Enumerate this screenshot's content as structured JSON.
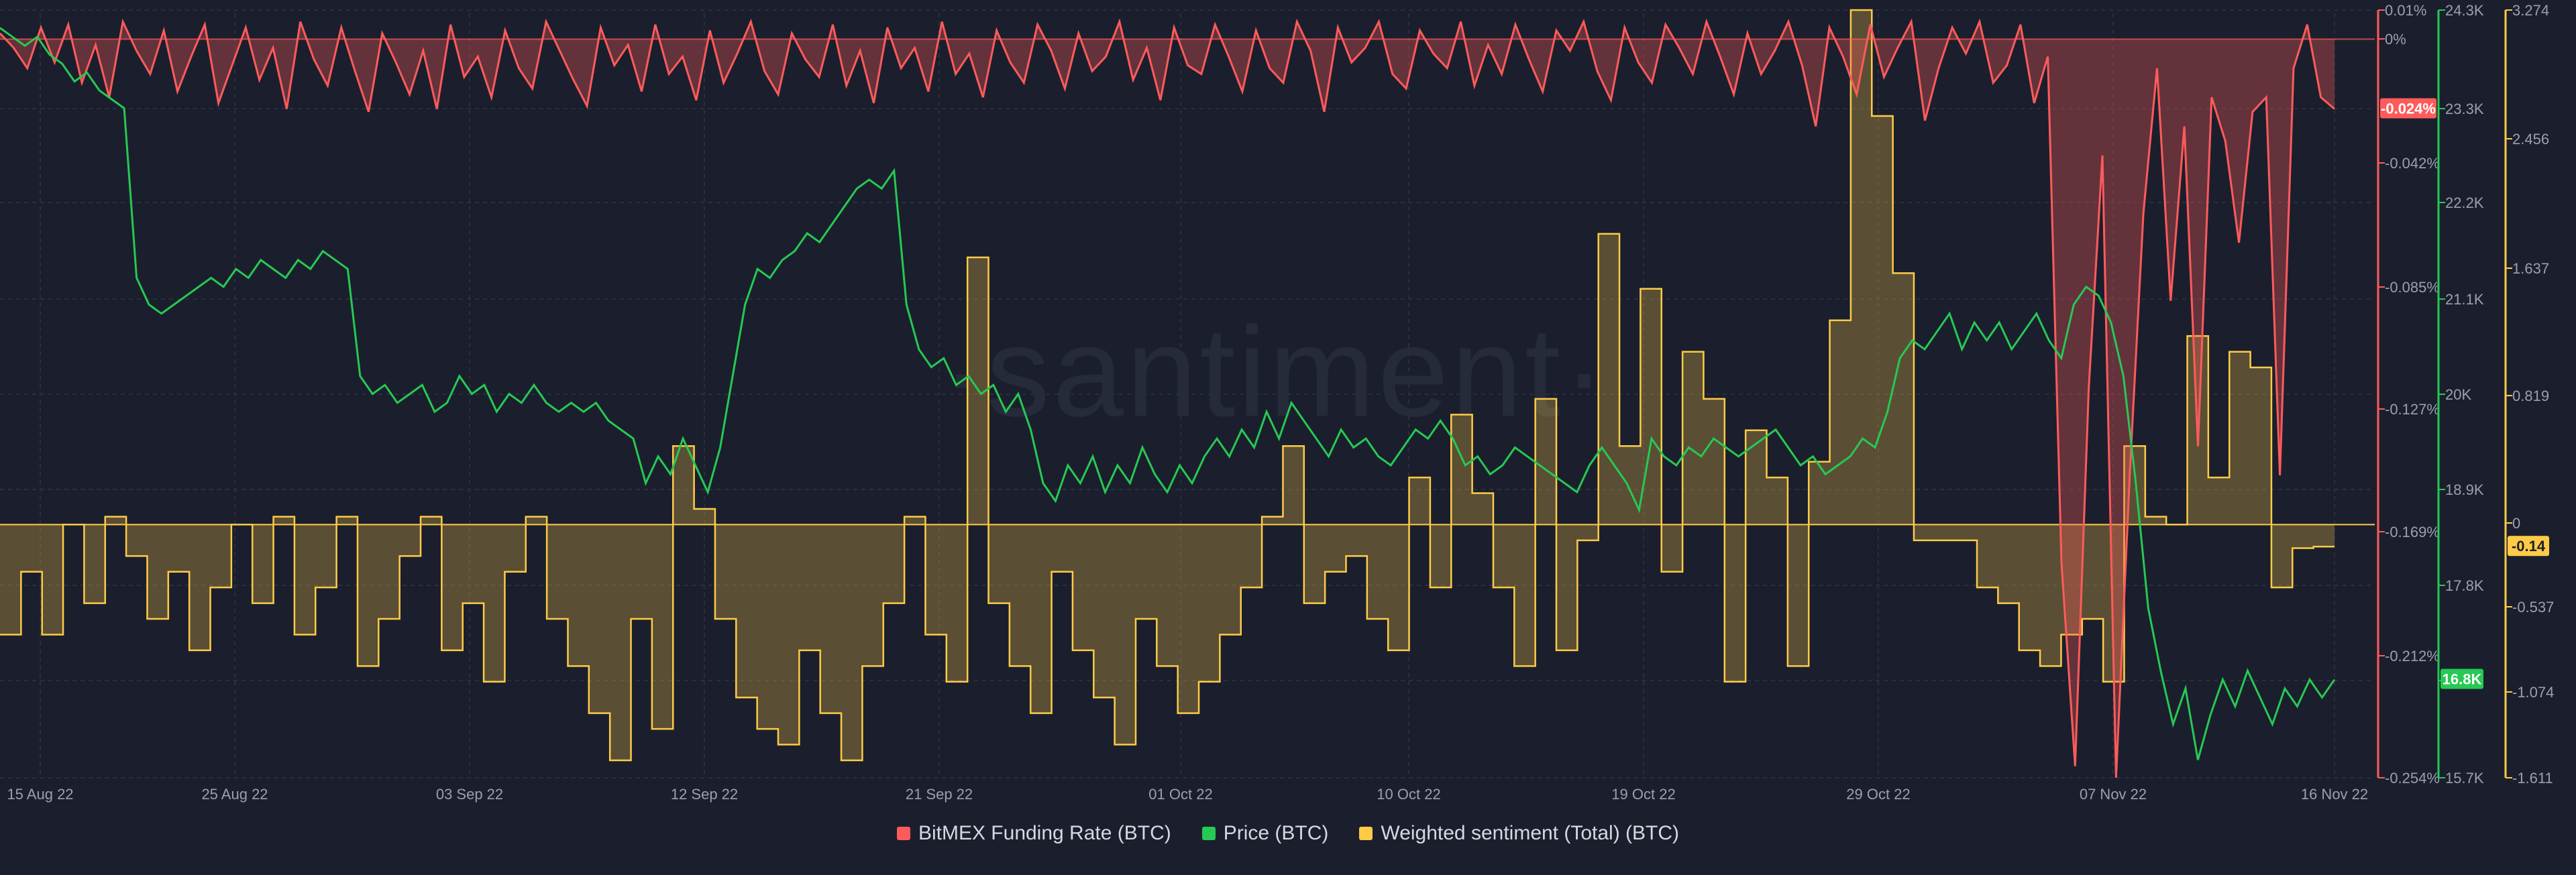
{
  "watermark": "·santiment·",
  "colors": {
    "background": "#1b1f2d",
    "grid": "#2a2f3f",
    "funding": "#ff5b5b",
    "price": "#26c953",
    "sentiment": "#ffcb47"
  },
  "chart_data": {
    "type": "line",
    "title": "",
    "x_tick_labels": [
      "15 Aug 22",
      "25 Aug 22",
      "03 Sep 22",
      "12 Sep 22",
      "21 Sep 22",
      "01 Oct 22",
      "10 Oct 22",
      "19 Oct 22",
      "29 Oct 22",
      "07 Nov 22",
      "16 Nov 22"
    ],
    "x_range": [
      "2022-08-15",
      "2022-11-16"
    ],
    "grid": true,
    "legend_position": "bottom-center",
    "series": [
      {
        "name": "BitMEX Funding Rate (BTC)",
        "key": "funding",
        "style": "area-line",
        "axis_ticks": [
          "0.01%",
          "0%",
          "-0.042%",
          "-0.085%",
          "-0.127%",
          "-0.169%",
          "-0.212%",
          "-0.254%"
        ],
        "ylim": [
          -0.254,
          0.01
        ],
        "last_value_label": "-0.024%",
        "values": [
          0.002,
          -0.003,
          -0.01,
          0.004,
          -0.008,
          0.005,
          -0.015,
          -0.002,
          -0.02,
          0.006,
          -0.004,
          -0.012,
          0.003,
          -0.018,
          -0.006,
          0.005,
          -0.022,
          -0.009,
          0.004,
          -0.014,
          -0.003,
          -0.024,
          0.006,
          -0.007,
          -0.016,
          0.004,
          -0.011,
          -0.025,
          0.002,
          -0.008,
          -0.019,
          -0.004,
          -0.024,
          0.005,
          -0.013,
          -0.006,
          -0.02,
          0.003,
          -0.01,
          -0.017,
          0.006,
          -0.004,
          -0.014,
          -0.023,
          0.004,
          -0.009,
          -0.002,
          -0.018,
          0.005,
          -0.012,
          -0.006,
          -0.021,
          0.003,
          -0.015,
          -0.005,
          0.006,
          -0.011,
          -0.019,
          0.002,
          -0.007,
          -0.013,
          0.005,
          -0.016,
          -0.004,
          -0.022,
          0.004,
          -0.01,
          -0.003,
          -0.018,
          0.006,
          -0.012,
          -0.005,
          -0.02,
          0.003,
          -0.008,
          -0.015,
          0.005,
          -0.004,
          -0.017,
          0.002,
          -0.011,
          -0.006,
          0.006,
          -0.014,
          -0.003,
          -0.021,
          0.004,
          -0.009,
          -0.012,
          0.005,
          -0.006,
          -0.018,
          0.003,
          -0.01,
          -0.015,
          0.006,
          -0.004,
          -0.025,
          0.004,
          -0.008,
          -0.003,
          0.006,
          -0.012,
          -0.017,
          0.003,
          -0.005,
          -0.01,
          0.006,
          -0.016,
          -0.002,
          -0.012,
          0.005,
          -0.007,
          -0.018,
          0.003,
          -0.004,
          0.006,
          -0.011,
          -0.021,
          0.004,
          -0.008,
          -0.015,
          0.005,
          -0.003,
          -0.012,
          0.006,
          -0.006,
          -0.019,
          0.002,
          -0.012,
          -0.004,
          0.006,
          -0.009,
          -0.03,
          0.004,
          -0.006,
          -0.019,
          0.005,
          -0.013,
          -0.003,
          0.006,
          -0.028,
          -0.01,
          0.004,
          -0.005,
          0.006,
          -0.015,
          -0.009,
          0.005,
          -0.022,
          -0.006,
          -0.18,
          -0.25,
          -0.12,
          -0.04,
          -0.254,
          -0.15,
          -0.06,
          -0.01,
          -0.09,
          -0.03,
          -0.14,
          -0.02,
          -0.035,
          -0.07,
          -0.025,
          -0.02,
          -0.15,
          -0.01,
          0.005,
          -0.02,
          -0.024
        ]
      },
      {
        "name": "Price (BTC)",
        "key": "price",
        "style": "line",
        "axis_ticks": [
          "24.3K",
          "23.3K",
          "22.2K",
          "21.1K",
          "20K",
          "18.9K",
          "17.8K",
          "16.8K",
          "15.7K"
        ],
        "ylim": [
          15.7,
          24.3
        ],
        "unit": "K USD",
        "last_value_label": "16.8K",
        "values": [
          24.1,
          24.0,
          23.9,
          24.0,
          23.8,
          23.7,
          23.5,
          23.6,
          23.4,
          23.3,
          23.2,
          21.3,
          21.0,
          20.9,
          21.0,
          21.1,
          21.2,
          21.3,
          21.2,
          21.4,
          21.3,
          21.5,
          21.4,
          21.3,
          21.5,
          21.4,
          21.6,
          21.5,
          21.4,
          20.2,
          20.0,
          20.1,
          19.9,
          20.0,
          20.1,
          19.8,
          19.9,
          20.2,
          20.0,
          20.1,
          19.8,
          20.0,
          19.9,
          20.1,
          19.9,
          19.8,
          19.9,
          19.8,
          19.9,
          19.7,
          19.6,
          19.5,
          19.0,
          19.3,
          19.1,
          19.5,
          19.2,
          18.9,
          19.4,
          20.2,
          21.0,
          21.4,
          21.3,
          21.5,
          21.6,
          21.8,
          21.7,
          21.9,
          22.1,
          22.3,
          22.4,
          22.3,
          22.5,
          21.0,
          20.5,
          20.3,
          20.4,
          20.1,
          20.2,
          20.0,
          20.1,
          19.8,
          20.0,
          19.6,
          19.0,
          18.8,
          19.2,
          19.0,
          19.3,
          18.9,
          19.2,
          19.0,
          19.4,
          19.1,
          18.9,
          19.2,
          19.0,
          19.3,
          19.5,
          19.3,
          19.6,
          19.4,
          19.8,
          19.5,
          19.9,
          19.7,
          19.5,
          19.3,
          19.6,
          19.4,
          19.5,
          19.3,
          19.2,
          19.4,
          19.6,
          19.5,
          19.7,
          19.5,
          19.2,
          19.3,
          19.1,
          19.2,
          19.4,
          19.3,
          19.2,
          19.1,
          19.0,
          18.9,
          19.2,
          19.4,
          19.2,
          19.0,
          18.7,
          19.5,
          19.3,
          19.2,
          19.4,
          19.3,
          19.5,
          19.4,
          19.3,
          19.4,
          19.5,
          19.6,
          19.4,
          19.2,
          19.3,
          19.1,
          19.2,
          19.3,
          19.5,
          19.4,
          19.8,
          20.4,
          20.6,
          20.5,
          20.7,
          20.9,
          20.5,
          20.8,
          20.6,
          20.8,
          20.5,
          20.7,
          20.9,
          20.6,
          20.4,
          21.0,
          21.2,
          21.1,
          20.8,
          20.2,
          19.0,
          17.6,
          16.9,
          16.3,
          16.7,
          15.9,
          16.4,
          16.8,
          16.5,
          16.9,
          16.6,
          16.3,
          16.7,
          16.5,
          16.8,
          16.6,
          16.8
        ]
      },
      {
        "name": "Weighted sentiment (Total) (BTC)",
        "key": "sentiment",
        "style": "step-area",
        "axis_ticks": [
          "3.274",
          "2.456",
          "1.637",
          "0.819",
          "0",
          "-0.537",
          "-1.074",
          "-1.611"
        ],
        "ylim": [
          -1.611,
          3.274
        ],
        "last_value_label": "-0.14",
        "values": [
          -0.7,
          -0.3,
          -0.7,
          0.0,
          -0.5,
          0.05,
          -0.2,
          -0.6,
          -0.3,
          -0.8,
          -0.4,
          0.0,
          -0.5,
          0.05,
          -0.7,
          -0.4,
          0.05,
          -0.9,
          -0.6,
          -0.2,
          0.05,
          -0.8,
          -0.5,
          -1.0,
          -0.3,
          0.05,
          -0.6,
          -0.9,
          -1.2,
          -1.5,
          -0.6,
          -1.3,
          0.5,
          0.1,
          -0.6,
          -1.1,
          -1.3,
          -1.4,
          -0.8,
          -1.2,
          -1.5,
          -0.9,
          -0.5,
          0.05,
          -0.7,
          -1.0,
          1.7,
          -0.5,
          -0.9,
          -1.2,
          -0.3,
          -0.8,
          -1.1,
          -1.4,
          -0.6,
          -0.9,
          -1.2,
          -1.0,
          -0.7,
          -0.4,
          0.05,
          0.5,
          -0.5,
          -0.3,
          -0.2,
          -0.6,
          -0.8,
          0.3,
          -0.4,
          0.7,
          0.2,
          -0.4,
          -0.9,
          0.8,
          -0.8,
          -0.1,
          1.85,
          0.5,
          1.5,
          -0.3,
          1.1,
          0.8,
          -1.0,
          0.6,
          0.3,
          -0.9,
          0.4,
          1.3,
          3.274,
          2.6,
          1.6,
          -0.1,
          -0.1,
          -0.1,
          -0.4,
          -0.5,
          -0.8,
          -0.9,
          -0.7,
          -0.6,
          -1.0,
          0.5,
          0.05,
          0.0,
          1.2,
          0.3,
          1.1,
          1.0,
          -0.4,
          -0.15,
          -0.14
        ]
      }
    ]
  },
  "legend": [
    {
      "label": "BitMEX Funding Rate (BTC)",
      "color": "#ff5b5b"
    },
    {
      "label": "Price (BTC)",
      "color": "#26c953"
    },
    {
      "label": "Weighted sentiment (Total) (BTC)",
      "color": "#ffcb47"
    }
  ]
}
